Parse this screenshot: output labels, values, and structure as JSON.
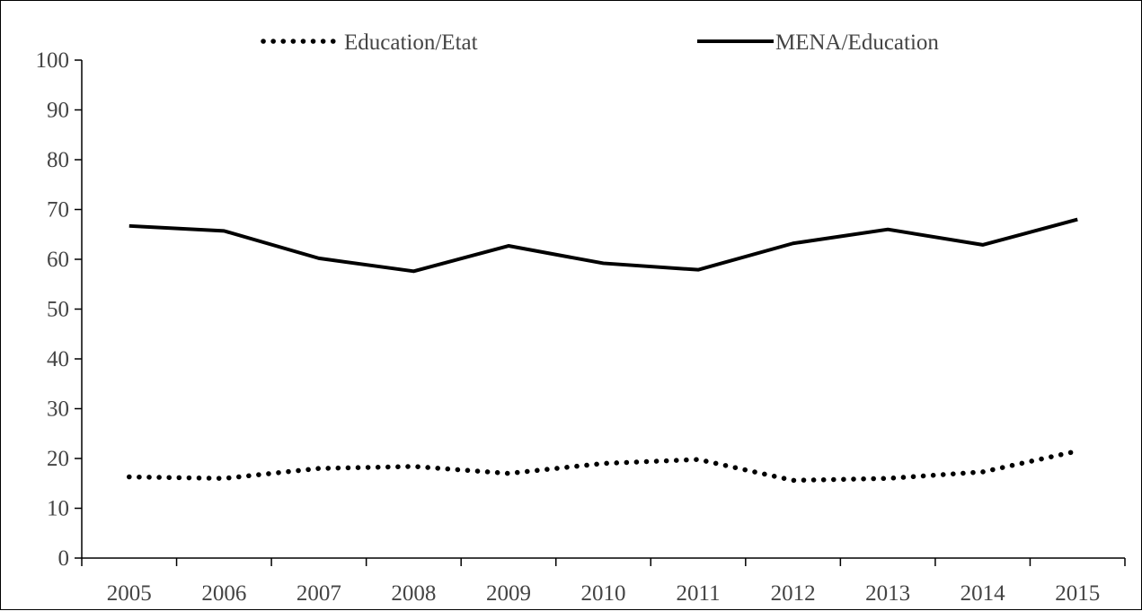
{
  "chart_data": {
    "type": "line",
    "title": "",
    "xlabel": "",
    "ylabel": "",
    "categories": [
      "2005",
      "2006",
      "2007",
      "2008",
      "2009",
      "2010",
      "2011",
      "2012",
      "2013",
      "2014",
      "2015"
    ],
    "ylim": [
      0,
      100
    ],
    "yticks": [
      "0",
      "10",
      "20",
      "30",
      "40",
      "50",
      "60",
      "70",
      "80",
      "90",
      "100"
    ],
    "grid": false,
    "legend_position": "top",
    "series": [
      {
        "name": "Education/Etat",
        "style": "dotted",
        "color": "#000000",
        "values": [
          16.3,
          16.0,
          18.0,
          18.4,
          17.0,
          19.0,
          19.8,
          15.6,
          16.0,
          17.3,
          21.5
        ]
      },
      {
        "name": "MENA/Education",
        "style": "solid",
        "color": "#000000",
        "values": [
          66.7,
          65.7,
          60.2,
          57.6,
          62.7,
          59.2,
          57.9,
          63.2,
          66.0,
          62.9,
          68.0
        ]
      }
    ]
  }
}
